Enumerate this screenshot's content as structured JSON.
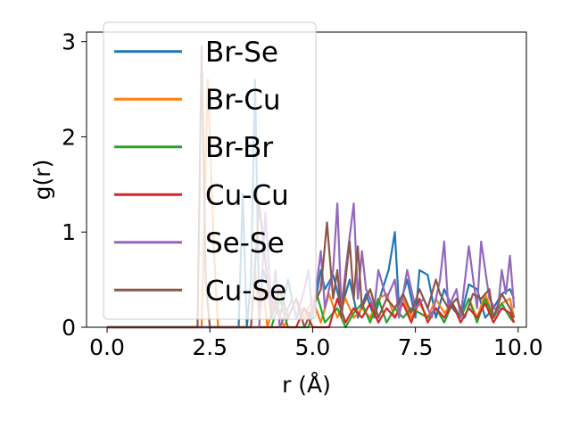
{
  "chart_data": {
    "type": "line",
    "xlabel": "r (Å)",
    "ylabel": "g(r)",
    "xlim": [
      -0.5,
      10.2
    ],
    "ylim": [
      0,
      3.1
    ],
    "xticks": [
      0.0,
      2.5,
      5.0,
      7.5,
      10.0
    ],
    "xtick_labels": [
      "0.0",
      "2.5",
      "5.0",
      "7.5",
      "10.0"
    ],
    "yticks": [
      0,
      1,
      2,
      3
    ],
    "ytick_labels": [
      "0",
      "1",
      "2",
      "3"
    ],
    "grid": false,
    "legend_position": "top-left",
    "series": [
      {
        "name": "Br-Se",
        "color": "#1f77b4",
        "points": [
          [
            0,
            0
          ],
          [
            3.2,
            0
          ],
          [
            3.3,
            1.4
          ],
          [
            3.4,
            0
          ],
          [
            3.5,
            0.5
          ],
          [
            3.6,
            2.6
          ],
          [
            3.7,
            0.1
          ],
          [
            3.8,
            0.6
          ],
          [
            4.0,
            0.3
          ],
          [
            4.2,
            0.1
          ],
          [
            4.4,
            0.5
          ],
          [
            4.6,
            0.1
          ],
          [
            4.8,
            0.2
          ],
          [
            5.0,
            0.1
          ],
          [
            5.2,
            0.6
          ],
          [
            5.3,
            0.4
          ],
          [
            5.5,
            0.55
          ],
          [
            5.7,
            0.2
          ],
          [
            5.9,
            0.5
          ],
          [
            6.1,
            0.1
          ],
          [
            6.3,
            0.35
          ],
          [
            6.5,
            0.1
          ],
          [
            6.7,
            0.4
          ],
          [
            6.85,
            0.6
          ],
          [
            7.0,
            1.0
          ],
          [
            7.1,
            0.2
          ],
          [
            7.3,
            0.5
          ],
          [
            7.5,
            0.1
          ],
          [
            7.6,
            0.6
          ],
          [
            7.8,
            0.55
          ],
          [
            8.0,
            0.1
          ],
          [
            8.2,
            0.4
          ],
          [
            8.4,
            0.2
          ],
          [
            8.6,
            0.1
          ],
          [
            8.8,
            0.45
          ],
          [
            9.0,
            0.4
          ],
          [
            9.2,
            0.1
          ],
          [
            9.4,
            0.2
          ],
          [
            9.6,
            0.35
          ],
          [
            9.8,
            0.4
          ],
          [
            9.9,
            0.3
          ]
        ]
      },
      {
        "name": "Br-Cu",
        "color": "#ff7f0e",
        "points": [
          [
            0,
            0
          ],
          [
            2.3,
            0
          ],
          [
            2.45,
            2.6
          ],
          [
            2.6,
            0.8
          ],
          [
            2.7,
            0
          ],
          [
            3.5,
            0
          ],
          [
            3.6,
            0.6
          ],
          [
            3.7,
            0.1
          ],
          [
            3.8,
            0.4
          ],
          [
            3.9,
            0
          ],
          [
            4.1,
            0.3
          ],
          [
            4.3,
            0
          ],
          [
            4.6,
            0.3
          ],
          [
            4.8,
            0.1
          ],
          [
            5.0,
            0.3
          ],
          [
            5.2,
            0.05
          ],
          [
            5.4,
            0.35
          ],
          [
            5.6,
            0.1
          ],
          [
            5.8,
            0.3
          ],
          [
            6.0,
            0.1
          ],
          [
            6.2,
            0.2
          ],
          [
            6.4,
            0.1
          ],
          [
            6.6,
            0.3
          ],
          [
            6.8,
            0.35
          ],
          [
            7.0,
            0.1
          ],
          [
            7.2,
            0.3
          ],
          [
            7.4,
            0.1
          ],
          [
            7.6,
            0.25
          ],
          [
            7.8,
            0.1
          ],
          [
            8.0,
            0.3
          ],
          [
            8.2,
            0.15
          ],
          [
            8.4,
            0.25
          ],
          [
            8.6,
            0.1
          ],
          [
            8.8,
            0.3
          ],
          [
            9.0,
            0.1
          ],
          [
            9.2,
            0.35
          ],
          [
            9.4,
            0.1
          ],
          [
            9.6,
            0.25
          ],
          [
            9.8,
            0.3
          ],
          [
            9.9,
            0.1
          ]
        ]
      },
      {
        "name": "Br-Br",
        "color": "#2ca02c",
        "points": [
          [
            0,
            0
          ],
          [
            4.0,
            0
          ],
          [
            4.2,
            0.3
          ],
          [
            4.4,
            0
          ],
          [
            4.9,
            0
          ],
          [
            5.1,
            0.35
          ],
          [
            5.3,
            0.05
          ],
          [
            5.6,
            0.2
          ],
          [
            5.8,
            0
          ],
          [
            6.0,
            0.15
          ],
          [
            6.2,
            0.25
          ],
          [
            6.4,
            0.05
          ],
          [
            6.6,
            0.3
          ],
          [
            6.8,
            0.05
          ],
          [
            7.0,
            0.2
          ],
          [
            7.2,
            0.1
          ],
          [
            7.4,
            0.2
          ],
          [
            7.6,
            0.15
          ],
          [
            7.8,
            0.1
          ],
          [
            8.0,
            0.2
          ],
          [
            8.2,
            0.05
          ],
          [
            8.4,
            0.25
          ],
          [
            8.6,
            0.1
          ],
          [
            8.8,
            0.3
          ],
          [
            9.0,
            0.05
          ],
          [
            9.2,
            0.3
          ],
          [
            9.4,
            0.1
          ],
          [
            9.6,
            0.25
          ],
          [
            9.8,
            0.1
          ],
          [
            9.9,
            0.05
          ]
        ]
      },
      {
        "name": "Cu-Cu",
        "color": "#d62728",
        "points": [
          [
            0,
            0
          ],
          [
            4.6,
            0
          ],
          [
            4.8,
            0.2
          ],
          [
            5.0,
            0
          ],
          [
            5.4,
            0
          ],
          [
            5.6,
            0.3
          ],
          [
            5.8,
            0.05
          ],
          [
            6.0,
            0.2
          ],
          [
            6.2,
            0.1
          ],
          [
            6.4,
            0.25
          ],
          [
            6.6,
            0.05
          ],
          [
            6.8,
            0.2
          ],
          [
            7.0,
            0.1
          ],
          [
            7.2,
            0.25
          ],
          [
            7.4,
            0.05
          ],
          [
            7.6,
            0.3
          ],
          [
            7.8,
            0.05
          ],
          [
            8.0,
            0.2
          ],
          [
            8.2,
            0.1
          ],
          [
            8.4,
            0.25
          ],
          [
            8.6,
            0.05
          ],
          [
            8.8,
            0.2
          ],
          [
            9.0,
            0.1
          ],
          [
            9.2,
            0.25
          ],
          [
            9.4,
            0.05
          ],
          [
            9.6,
            0.2
          ],
          [
            9.8,
            0.15
          ],
          [
            9.9,
            0.05
          ]
        ]
      },
      {
        "name": "Se-Se",
        "color": "#9467bd",
        "points": [
          [
            0,
            0
          ],
          [
            3.7,
            0
          ],
          [
            3.85,
            1.2
          ],
          [
            4.0,
            0.2
          ],
          [
            4.1,
            0.6
          ],
          [
            4.2,
            0
          ],
          [
            4.5,
            0.3
          ],
          [
            4.6,
            0.1
          ],
          [
            4.8,
            0.4
          ],
          [
            4.9,
            0.6
          ],
          [
            5.0,
            0.1
          ],
          [
            5.2,
            0.8
          ],
          [
            5.3,
            0.2
          ],
          [
            5.5,
            0.6
          ],
          [
            5.6,
            1.3
          ],
          [
            5.7,
            0.2
          ],
          [
            5.8,
            0.6
          ],
          [
            6.0,
            1.3
          ],
          [
            6.1,
            0.3
          ],
          [
            6.2,
            0.8
          ],
          [
            6.3,
            0.4
          ],
          [
            6.5,
            0.2
          ],
          [
            6.6,
            0.6
          ],
          [
            6.8,
            0.3
          ],
          [
            7.0,
            0.5
          ],
          [
            7.1,
            0.1
          ],
          [
            7.3,
            0.6
          ],
          [
            7.5,
            0.2
          ],
          [
            7.7,
            0.3
          ],
          [
            7.9,
            0.1
          ],
          [
            8.1,
            0.5
          ],
          [
            8.2,
            0.9
          ],
          [
            8.3,
            0.2
          ],
          [
            8.5,
            0.4
          ],
          [
            8.6,
            0.1
          ],
          [
            8.8,
            0.85
          ],
          [
            9.0,
            0.2
          ],
          [
            9.1,
            0.9
          ],
          [
            9.3,
            0.3
          ],
          [
            9.5,
            0.15
          ],
          [
            9.6,
            0.6
          ],
          [
            9.7,
            0.35
          ],
          [
            9.8,
            0.75
          ],
          [
            9.9,
            0.2
          ]
        ]
      },
      {
        "name": "Cu-Se",
        "color": "#8c564b",
        "points": [
          [
            0,
            0
          ],
          [
            2.2,
            0
          ],
          [
            2.3,
            2.95
          ],
          [
            2.4,
            0.5
          ],
          [
            2.5,
            0
          ],
          [
            3.5,
            0
          ],
          [
            3.7,
            1.3
          ],
          [
            3.9,
            0.5
          ],
          [
            4.0,
            0.1
          ],
          [
            4.2,
            0.4
          ],
          [
            4.4,
            0.1
          ],
          [
            4.6,
            0.3
          ],
          [
            4.8,
            0
          ],
          [
            5.0,
            0.2
          ],
          [
            5.2,
            0.4
          ],
          [
            5.35,
            1.1
          ],
          [
            5.5,
            0.3
          ],
          [
            5.6,
            0.6
          ],
          [
            5.7,
            0.1
          ],
          [
            5.9,
            0.9
          ],
          [
            6.0,
            0.3
          ],
          [
            6.1,
            0.85
          ],
          [
            6.2,
            0.2
          ],
          [
            6.4,
            0.4
          ],
          [
            6.6,
            0.1
          ],
          [
            6.8,
            0.3
          ],
          [
            7.0,
            0.2
          ],
          [
            7.2,
            0.35
          ],
          [
            7.4,
            0.15
          ],
          [
            7.6,
            0.4
          ],
          [
            7.8,
            0.2
          ],
          [
            8.0,
            0.5
          ],
          [
            8.1,
            0.35
          ],
          [
            8.3,
            0.2
          ],
          [
            8.5,
            0.3
          ],
          [
            8.7,
            0.1
          ],
          [
            8.9,
            0.35
          ],
          [
            9.1,
            0.3
          ],
          [
            9.3,
            0.4
          ],
          [
            9.4,
            0.1
          ],
          [
            9.6,
            0.35
          ],
          [
            9.8,
            0.2
          ],
          [
            9.9,
            0.1
          ]
        ]
      }
    ]
  }
}
